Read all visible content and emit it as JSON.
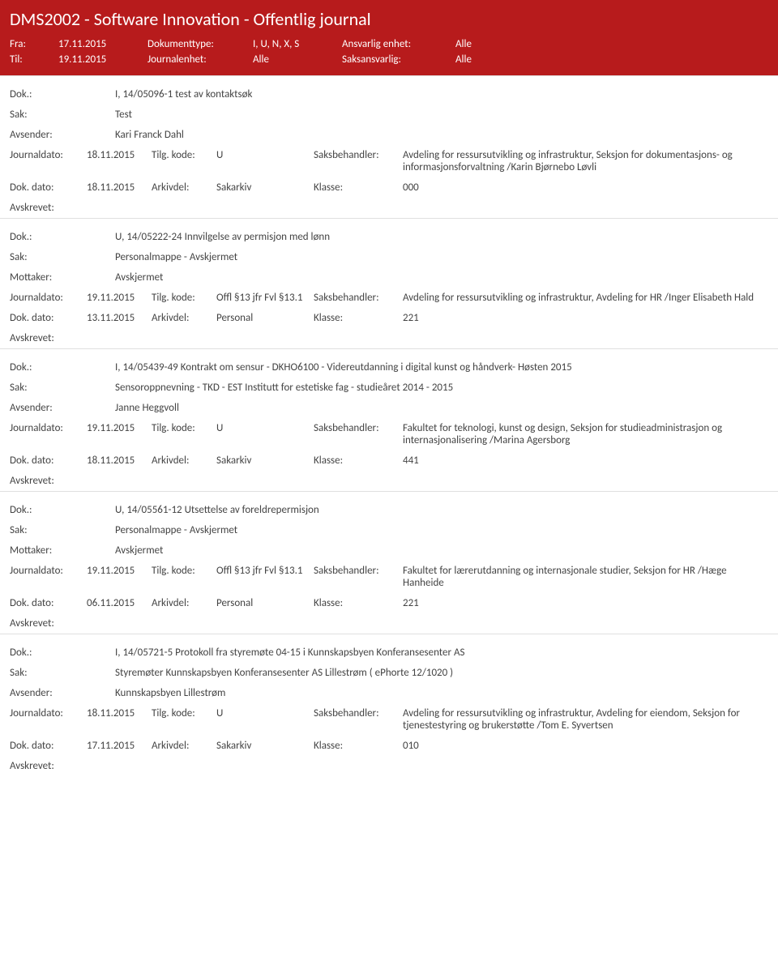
{
  "header": {
    "title": "DMS2002 - Software Innovation - Offentlig journal",
    "fra_label": "Fra:",
    "fra_value": "17.11.2015",
    "doktype_label": "Dokumenttype:",
    "doktype_value": "I, U, N, X, S",
    "ansvarlig_label": "Ansvarlig enhet:",
    "ansvarlig_value": "Alle",
    "til_label": "Til:",
    "til_value": "19.11.2015",
    "journalenhet_label": "Journalenhet:",
    "journalenhet_value": "Alle",
    "saksansvarlig_label": "Saksansvarlig:",
    "saksansvarlig_value": "Alle"
  },
  "labels": {
    "dok": "Dok.:",
    "sak": "Sak:",
    "avsender": "Avsender:",
    "mottaker": "Mottaker:",
    "journaldato": "Journaldato:",
    "tilgkode": "Tilg. kode:",
    "saksbehandler": "Saksbehandler:",
    "dokdato": "Dok. dato:",
    "arkivdel": "Arkivdel:",
    "klasse": "Klasse:",
    "avskrevet": "Avskrevet:"
  },
  "docs": [
    {
      "dok": "I, 14/05096-1 test av kontaktsøk",
      "sak": "Test",
      "party_label": "Avsender:",
      "party": "Kari Franck Dahl",
      "journaldato": "18.11.2015",
      "tilgkode": "U",
      "saksbehandler": "Avdeling for ressursutvikling og infrastruktur, Seksjon for dokumentasjons- og informasjonsforvaltning /Karin Bjørnebo Løvli",
      "dokdato": "18.11.2015",
      "arkivdel": "Sakarkiv",
      "klasse": "000"
    },
    {
      "dok": "U, 14/05222-24 Innvilgelse av permisjon med lønn",
      "sak": "Personalmappe - Avskjermet",
      "party_label": "Mottaker:",
      "party": "Avskjermet",
      "journaldato": "19.11.2015",
      "tilgkode": "Offl §13 jfr Fvl §13.1",
      "saksbehandler": "Avdeling for ressursutvikling og infrastruktur, Avdeling for HR /Inger Elisabeth Hald",
      "dokdato": "13.11.2015",
      "arkivdel": "Personal",
      "klasse": "221"
    },
    {
      "dok": "I, 14/05439-49 Kontrakt om sensur - DKHO6100 - Videreutdanning i digital kunst og håndverk- Høsten 2015",
      "sak": "Sensoroppnevning - TKD - EST Institutt for estetiske fag - studieåret 2014 - 2015",
      "party_label": "Avsender:",
      "party": "Janne Heggvoll",
      "journaldato": "19.11.2015",
      "tilgkode": "U",
      "saksbehandler": "Fakultet for teknologi, kunst og design, Seksjon for studieadministrasjon og internasjonalisering /Marina Agersborg",
      "dokdato": "18.11.2015",
      "arkivdel": "Sakarkiv",
      "klasse": "441"
    },
    {
      "dok": "U, 14/05561-12 Utsettelse av foreldrepermisjon",
      "sak": "Personalmappe - Avskjermet",
      "party_label": "Mottaker:",
      "party": "Avskjermet",
      "journaldato": "19.11.2015",
      "tilgkode": "Offl §13 jfr Fvl §13.1",
      "saksbehandler": "Fakultet for lærerutdanning og internasjonale studier, Seksjon for HR /Hæge Hanheide",
      "dokdato": "06.11.2015",
      "arkivdel": "Personal",
      "klasse": "221"
    },
    {
      "dok": "I, 14/05721-5 Protokoll fra styremøte 04-15 i Kunnskapsbyen Konferansesenter AS",
      "sak": "Styremøter Kunnskapsbyen Konferansesenter AS Lillestrøm ( ePhorte 12/1020 )",
      "party_label": "Avsender:",
      "party": "Kunnskapsbyen Lillestrøm",
      "journaldato": "18.11.2015",
      "tilgkode": "U",
      "saksbehandler": "Avdeling for ressursutvikling og infrastruktur, Avdeling for eiendom, Seksjon for tjenestestyring og brukerstøtte /Tom E. Syvertsen",
      "dokdato": "17.11.2015",
      "arkivdel": "Sakarkiv",
      "klasse": "010"
    }
  ]
}
